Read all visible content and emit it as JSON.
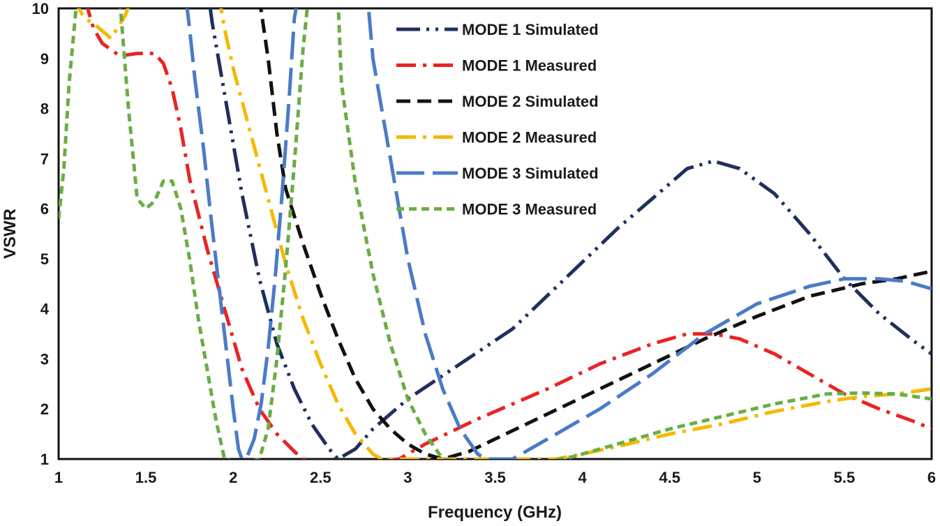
{
  "chart_data": {
    "type": "line",
    "title": "",
    "xlabel": "Frequency (GHz)",
    "ylabel": "VSWR",
    "xlim": [
      1,
      6
    ],
    "ylim": [
      1,
      10
    ],
    "xticks": [
      "1",
      "1.5",
      "2",
      "2.5",
      "3",
      "3.5",
      "4",
      "4.5",
      "5",
      "5.5",
      "6"
    ],
    "yticks": [
      "1",
      "2",
      "3",
      "4",
      "5",
      "6",
      "7",
      "8",
      "9",
      "10"
    ],
    "grid": false,
    "legend_position": "top-center",
    "series": [
      {
        "name": "MODE 1 Simulated",
        "color": "#1f2f5e",
        "dash": "dash-dot-dot",
        "points": [
          [
            1.83,
            11
          ],
          [
            1.88,
            9.7
          ],
          [
            1.95,
            8.3
          ],
          [
            2.05,
            6.3
          ],
          [
            2.15,
            4.6
          ],
          [
            2.25,
            3.3
          ],
          [
            2.35,
            2.4
          ],
          [
            2.45,
            1.7
          ],
          [
            2.55,
            1.2
          ],
          [
            2.6,
            1.0
          ],
          [
            2.7,
            1.2
          ],
          [
            2.8,
            1.6
          ],
          [
            3.0,
            2.2
          ],
          [
            3.3,
            2.9
          ],
          [
            3.6,
            3.6
          ],
          [
            3.9,
            4.6
          ],
          [
            4.2,
            5.6
          ],
          [
            4.4,
            6.2
          ],
          [
            4.6,
            6.8
          ],
          [
            4.75,
            6.95
          ],
          [
            4.9,
            6.8
          ],
          [
            5.1,
            6.3
          ],
          [
            5.3,
            5.5
          ],
          [
            5.5,
            4.6
          ],
          [
            5.7,
            3.9
          ],
          [
            5.9,
            3.35
          ],
          [
            6.0,
            3.1
          ]
        ]
      },
      {
        "name": "MODE 1 Measured",
        "color": "#e82424",
        "dash": "dash-dot",
        "points": [
          [
            1.15,
            10.2
          ],
          [
            1.2,
            9.6
          ],
          [
            1.25,
            9.3
          ],
          [
            1.35,
            9.05
          ],
          [
            1.45,
            9.1
          ],
          [
            1.55,
            9.1
          ],
          [
            1.6,
            8.9
          ],
          [
            1.65,
            8.4
          ],
          [
            1.7,
            7.6
          ],
          [
            1.75,
            6.6
          ],
          [
            1.85,
            5.2
          ],
          [
            1.95,
            4.0
          ],
          [
            2.05,
            2.8
          ],
          [
            2.15,
            2.0
          ],
          [
            2.25,
            1.5
          ],
          [
            2.35,
            1.15
          ],
          [
            2.4,
            1.0
          ],
          [
            2.5,
            0.95
          ],
          [
            2.8,
            0.95
          ],
          [
            2.95,
            1.0
          ],
          [
            3.1,
            1.3
          ],
          [
            3.4,
            1.8
          ],
          [
            3.8,
            2.4
          ],
          [
            4.1,
            2.9
          ],
          [
            4.4,
            3.3
          ],
          [
            4.6,
            3.5
          ],
          [
            4.75,
            3.5
          ],
          [
            4.9,
            3.4
          ],
          [
            5.1,
            3.1
          ],
          [
            5.3,
            2.7
          ],
          [
            5.5,
            2.3
          ],
          [
            5.7,
            2.0
          ],
          [
            5.9,
            1.75
          ],
          [
            6.0,
            1.6
          ]
        ]
      },
      {
        "name": "MODE 2 Simulated",
        "color": "#111111",
        "dash": "dash",
        "points": [
          [
            2.15,
            10.2
          ],
          [
            2.2,
            9.0
          ],
          [
            2.25,
            7.5
          ],
          [
            2.3,
            6.4
          ],
          [
            2.4,
            5.3
          ],
          [
            2.5,
            4.3
          ],
          [
            2.6,
            3.4
          ],
          [
            2.7,
            2.6
          ],
          [
            2.8,
            2.0
          ],
          [
            2.9,
            1.6
          ],
          [
            3.0,
            1.3
          ],
          [
            3.1,
            1.1
          ],
          [
            3.2,
            1.0
          ],
          [
            3.35,
            1.15
          ],
          [
            3.5,
            1.4
          ],
          [
            3.8,
            1.9
          ],
          [
            4.1,
            2.4
          ],
          [
            4.4,
            2.9
          ],
          [
            4.7,
            3.4
          ],
          [
            5.0,
            3.85
          ],
          [
            5.3,
            4.25
          ],
          [
            5.6,
            4.5
          ],
          [
            5.8,
            4.6
          ],
          [
            6.0,
            4.75
          ]
        ]
      },
      {
        "name": "MODE 2 Measured",
        "color": "#f5b800",
        "dash": "dash-dot",
        "points": [
          [
            1.08,
            10.2
          ],
          [
            1.15,
            9.8
          ],
          [
            1.2,
            9.7
          ],
          [
            1.25,
            9.55
          ],
          [
            1.3,
            9.4
          ],
          [
            1.38,
            9.85
          ],
          [
            1.42,
            10.2
          ],
          [
            1.92,
            10.2
          ],
          [
            1.95,
            9.6
          ],
          [
            2.0,
            8.8
          ],
          [
            2.1,
            7.5
          ],
          [
            2.2,
            6.2
          ],
          [
            2.3,
            4.9
          ],
          [
            2.4,
            3.8
          ],
          [
            2.5,
            2.9
          ],
          [
            2.6,
            2.1
          ],
          [
            2.7,
            1.5
          ],
          [
            2.8,
            1.1
          ],
          [
            2.85,
            1.0
          ],
          [
            3.85,
            1.0
          ],
          [
            4.0,
            1.1
          ],
          [
            4.2,
            1.25
          ],
          [
            4.5,
            1.5
          ],
          [
            4.8,
            1.7
          ],
          [
            5.1,
            1.95
          ],
          [
            5.4,
            2.15
          ],
          [
            5.6,
            2.25
          ],
          [
            5.8,
            2.3
          ],
          [
            6.0,
            2.4
          ]
        ]
      },
      {
        "name": "MODE 3 Simulated",
        "color": "#4a7bc8",
        "dash": "long-dash",
        "points": [
          [
            1.73,
            10.2
          ],
          [
            1.75,
            9.6
          ],
          [
            1.78,
            8.6
          ],
          [
            1.83,
            7.2
          ],
          [
            1.87,
            5.9
          ],
          [
            1.92,
            4.4
          ],
          [
            1.96,
            3.2
          ],
          [
            2.0,
            2.0
          ],
          [
            2.03,
            1.2
          ],
          [
            2.05,
            1.0
          ],
          [
            2.08,
            1.05
          ],
          [
            2.12,
            1.4
          ],
          [
            2.16,
            2.1
          ],
          [
            2.2,
            3.2
          ],
          [
            2.24,
            4.6
          ],
          [
            2.28,
            6.3
          ],
          [
            2.32,
            8.2
          ],
          [
            2.35,
            9.8
          ],
          [
            2.37,
            10.2
          ],
          [
            2.77,
            10.2
          ],
          [
            2.8,
            9.0
          ],
          [
            2.85,
            8.0
          ],
          [
            2.92,
            6.6
          ],
          [
            3.0,
            5.0
          ],
          [
            3.1,
            3.5
          ],
          [
            3.2,
            2.4
          ],
          [
            3.3,
            1.6
          ],
          [
            3.4,
            1.1
          ],
          [
            3.45,
            1.0
          ],
          [
            3.6,
            1.0
          ],
          [
            3.8,
            1.4
          ],
          [
            4.1,
            2.0
          ],
          [
            4.4,
            2.7
          ],
          [
            4.7,
            3.5
          ],
          [
            5.0,
            4.1
          ],
          [
            5.3,
            4.45
          ],
          [
            5.5,
            4.6
          ],
          [
            5.7,
            4.6
          ],
          [
            5.85,
            4.55
          ],
          [
            6.0,
            4.4
          ]
        ]
      },
      {
        "name": "MODE 3 Measured",
        "color": "#6aad45",
        "dash": "short-dash",
        "points": [
          [
            1.0,
            5.8
          ],
          [
            1.03,
            6.8
          ],
          [
            1.06,
            8.5
          ],
          [
            1.1,
            10.0
          ],
          [
            1.13,
            10.2
          ],
          [
            1.35,
            10.2
          ],
          [
            1.4,
            8.0
          ],
          [
            1.45,
            6.2
          ],
          [
            1.5,
            6.0
          ],
          [
            1.55,
            6.15
          ],
          [
            1.6,
            6.55
          ],
          [
            1.65,
            6.55
          ],
          [
            1.7,
            6.0
          ],
          [
            1.75,
            5.0
          ],
          [
            1.8,
            3.8
          ],
          [
            1.85,
            2.8
          ],
          [
            1.9,
            1.8
          ],
          [
            1.95,
            1.0
          ],
          [
            2.0,
            0.95
          ],
          [
            2.1,
            0.95
          ],
          [
            2.15,
            1.0
          ],
          [
            2.2,
            1.6
          ],
          [
            2.25,
            3.0
          ],
          [
            2.3,
            4.8
          ],
          [
            2.35,
            6.9
          ],
          [
            2.4,
            9.2
          ],
          [
            2.43,
            10.2
          ],
          [
            2.6,
            10.2
          ],
          [
            2.62,
            8.5
          ],
          [
            2.7,
            6.5
          ],
          [
            2.8,
            4.7
          ],
          [
            2.9,
            3.3
          ],
          [
            3.0,
            2.2
          ],
          [
            3.1,
            1.5
          ],
          [
            3.2,
            1.0
          ],
          [
            3.3,
            0.95
          ],
          [
            3.8,
            0.95
          ],
          [
            3.95,
            1.05
          ],
          [
            4.2,
            1.3
          ],
          [
            4.5,
            1.6
          ],
          [
            4.8,
            1.85
          ],
          [
            5.1,
            2.1
          ],
          [
            5.4,
            2.3
          ],
          [
            5.6,
            2.32
          ],
          [
            5.8,
            2.3
          ],
          [
            6.0,
            2.2
          ]
        ]
      }
    ]
  }
}
